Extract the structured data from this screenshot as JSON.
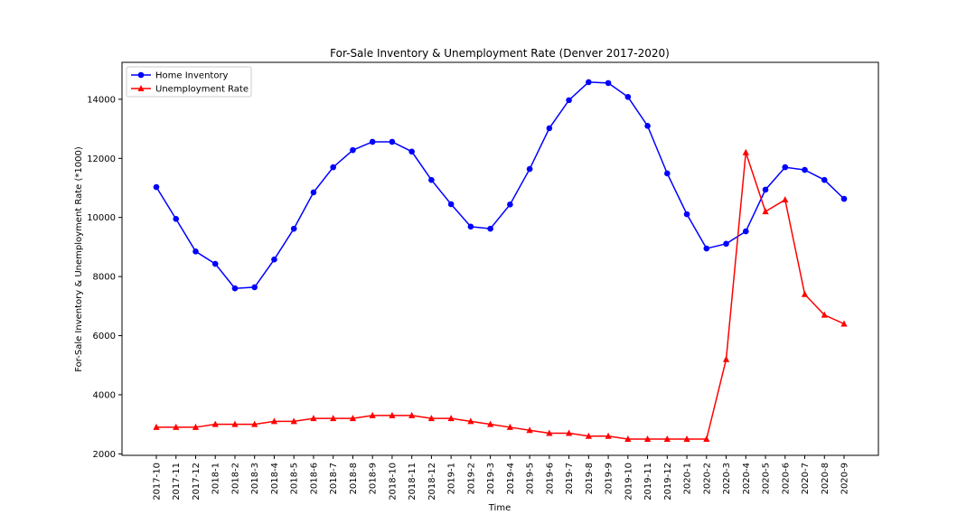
{
  "chart_data": {
    "type": "line",
    "title": "For-Sale Inventory & Unemployment Rate (Denver 2017-2020)",
    "xlabel": "Time",
    "ylabel": "For-Sale Inventory & Unemployment Rate (*1000)",
    "categories": [
      "2017-10",
      "2017-11",
      "2017-12",
      "2018-1",
      "2018-2",
      "2018-3",
      "2018-4",
      "2018-5",
      "2018-6",
      "2018-7",
      "2018-8",
      "2018-9",
      "2018-10",
      "2018-11",
      "2018-12",
      "2019-1",
      "2019-2",
      "2019-3",
      "2019-4",
      "2019-5",
      "2019-6",
      "2019-7",
      "2019-8",
      "2019-9",
      "2019-10",
      "2019-11",
      "2019-12",
      "2020-1",
      "2020-2",
      "2020-3",
      "2020-4",
      "2020-5",
      "2020-6",
      "2020-7",
      "2020-8",
      "2020-9"
    ],
    "ylim": [
      1950,
      15250
    ],
    "yticks": [
      2000,
      4000,
      6000,
      8000,
      10000,
      12000,
      14000
    ],
    "grid": false,
    "legend_position": "upper-left",
    "series": [
      {
        "name": "Home Inventory",
        "color": "#0000ff",
        "marker": "circle",
        "values": [
          11030,
          9950,
          8850,
          8430,
          7600,
          7640,
          8580,
          9620,
          10850,
          11700,
          12280,
          12560,
          12560,
          12230,
          11270,
          10450,
          9690,
          9620,
          10440,
          11640,
          13020,
          13970,
          14580,
          14550,
          14080,
          13100,
          11490,
          10110,
          8950,
          9110,
          9530,
          10940,
          11700,
          11610,
          11270,
          10630
        ]
      },
      {
        "name": "Unemployment Rate",
        "color": "#ff0000",
        "marker": "triangle",
        "values": [
          2900,
          2900,
          2900,
          3000,
          3000,
          3000,
          3100,
          3100,
          3200,
          3200,
          3200,
          3300,
          3300,
          3300,
          3200,
          3200,
          3100,
          3000,
          2900,
          2800,
          2700,
          2700,
          2600,
          2600,
          2500,
          2500,
          2500,
          2500,
          2500,
          5200,
          12200,
          10200,
          10600,
          7400,
          6700,
          6400
        ]
      }
    ]
  }
}
